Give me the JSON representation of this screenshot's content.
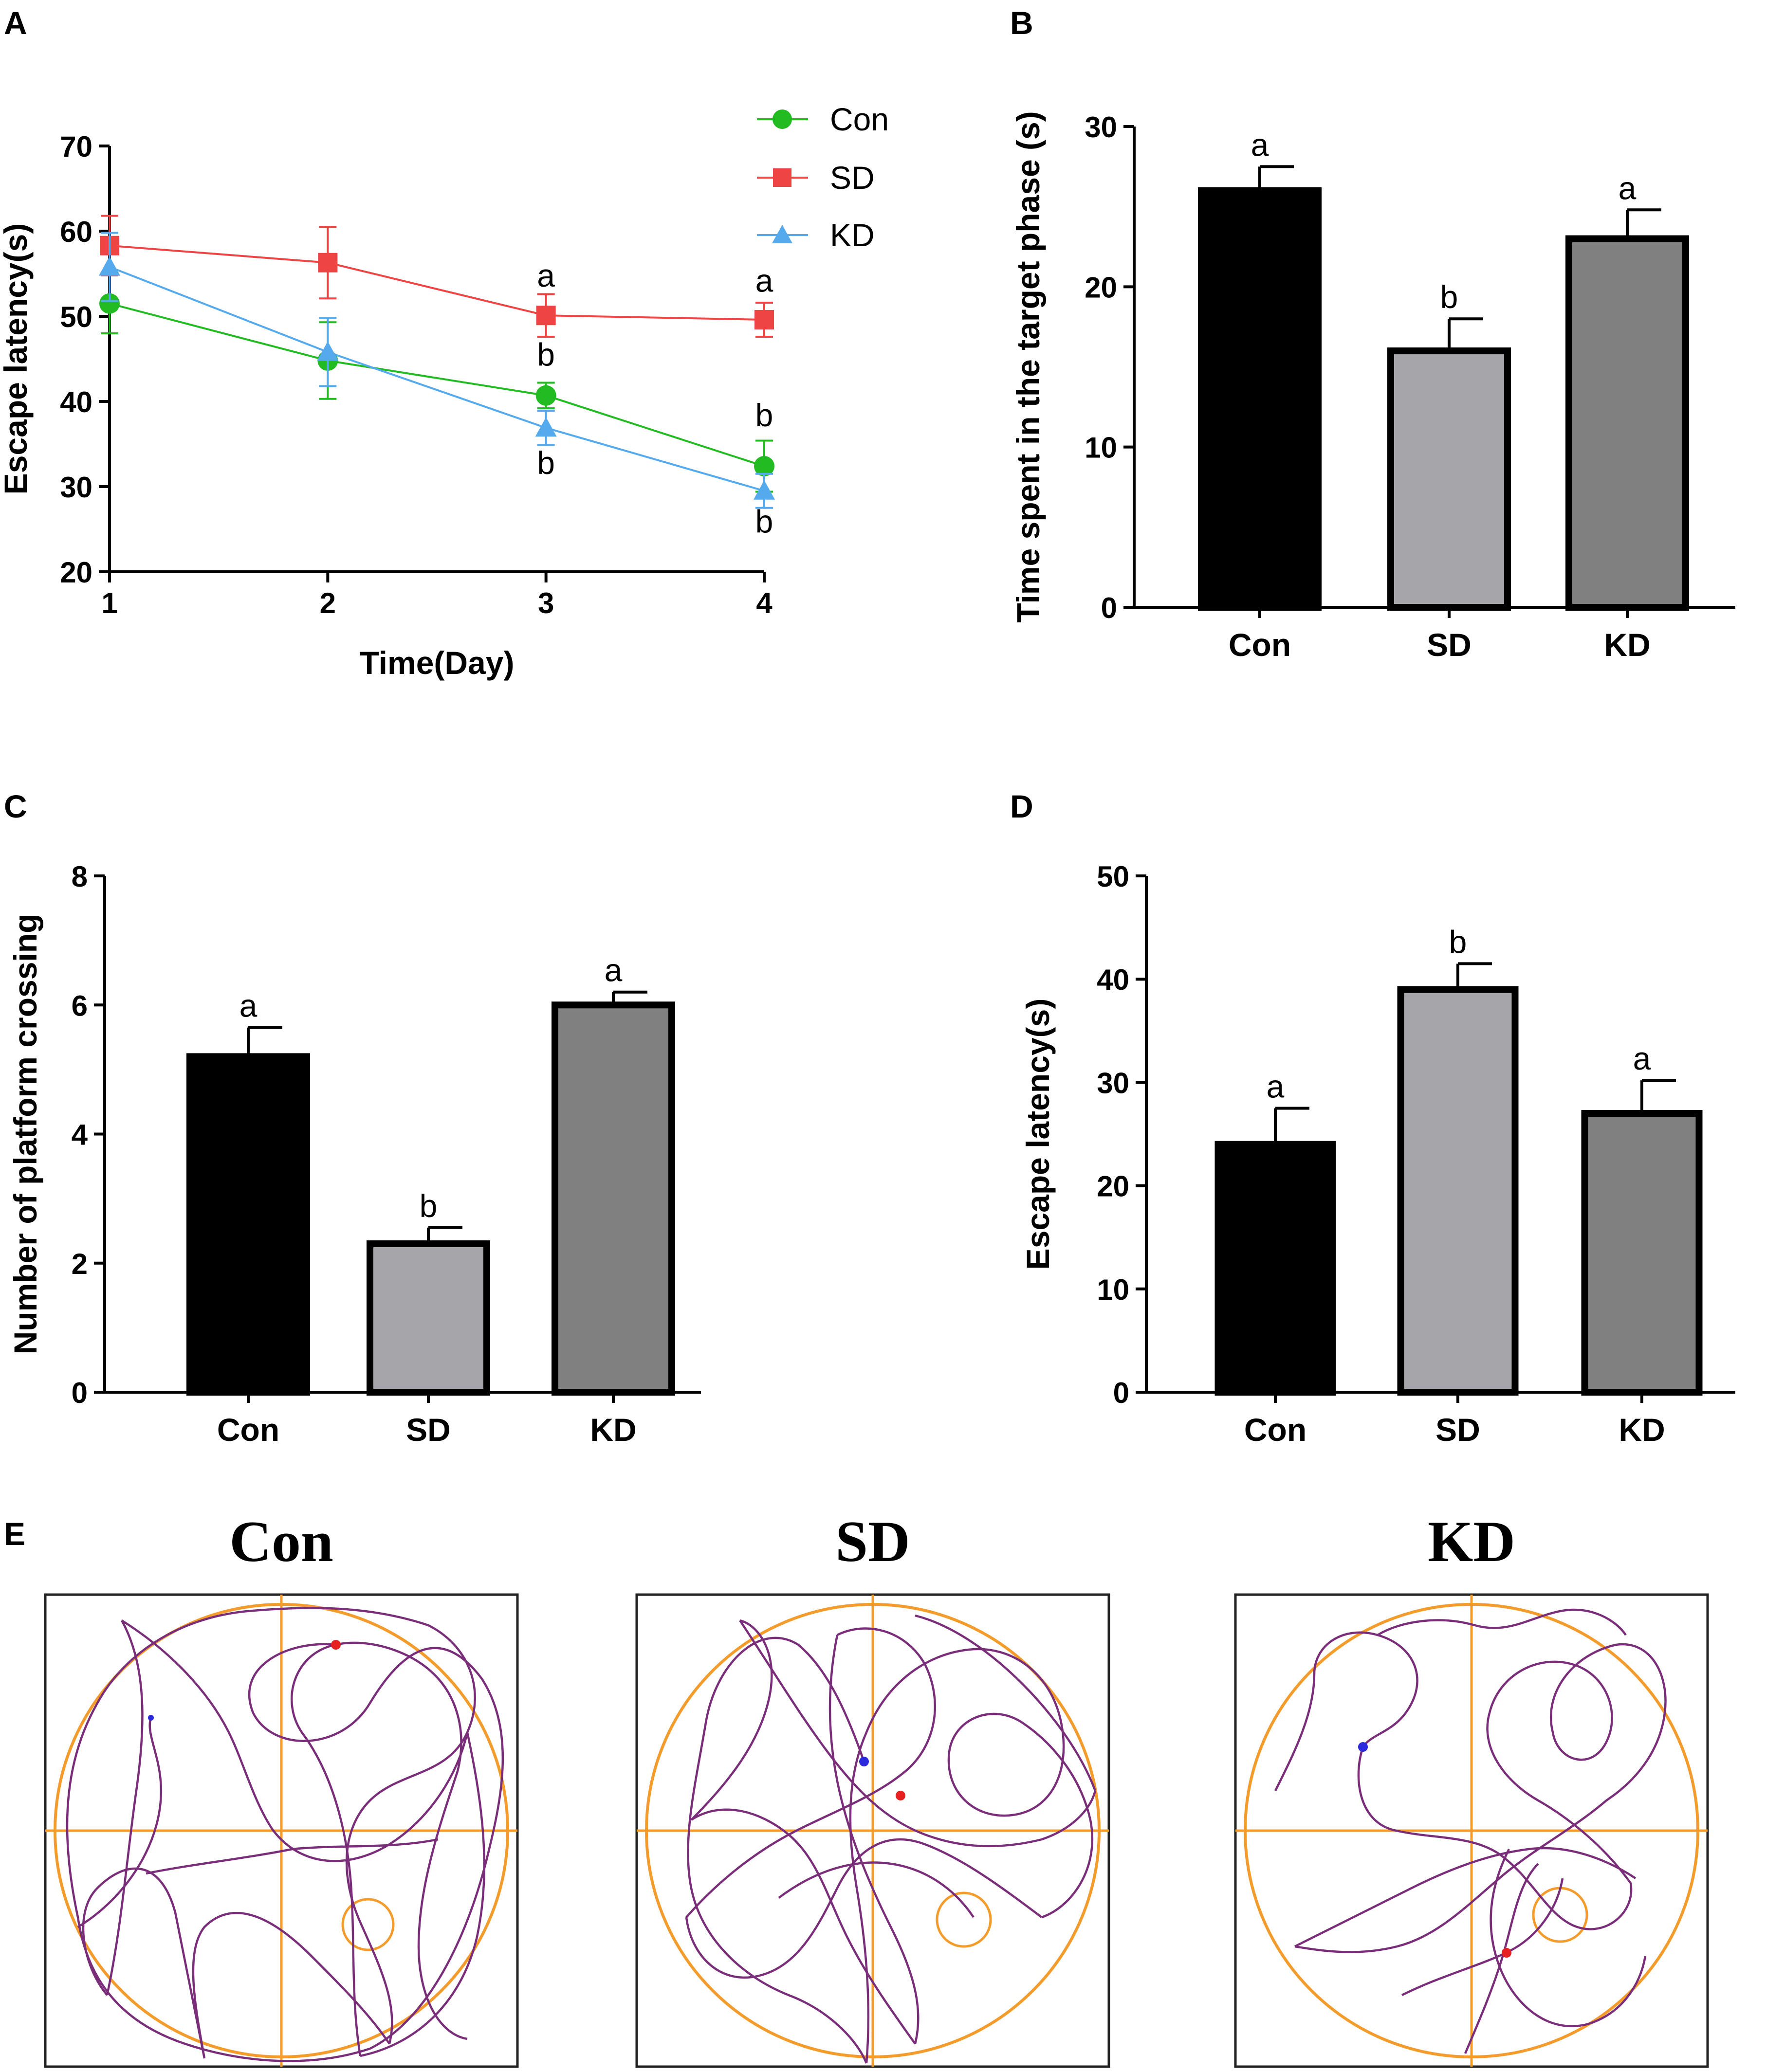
{
  "panel_letters": [
    "A",
    "B",
    "C",
    "D",
    "E"
  ],
  "colors": {
    "con": "#22bb22",
    "sd": "#ee4444",
    "kd": "#55aaee",
    "bar_con": "#000000",
    "bar_sd": "#a6a6aa",
    "bar_kd": "#808080",
    "maze": "#f39c2c",
    "path": "#7a2e7a",
    "start": "#2b2bdd",
    "end": "#e62020"
  },
  "chart_data": [
    {
      "id": "A",
      "type": "line",
      "x": [
        1,
        2,
        3,
        4
      ],
      "xlabel": "Time(Day)",
      "ylabel": "Escape latency(s)",
      "ylim": [
        20,
        70
      ],
      "yticks": [
        20,
        30,
        40,
        50,
        60,
        70
      ],
      "xticks": [
        "1",
        "2",
        "3",
        "4"
      ],
      "legend": [
        "Con",
        "SD",
        "KD"
      ],
      "series": [
        {
          "name": "Con",
          "marker": "circle",
          "values": [
            51.5,
            44.8,
            40.7,
            32.4
          ],
          "errors": [
            3.5,
            4.5,
            1.5,
            3.0
          ]
        },
        {
          "name": "SD",
          "marker": "square",
          "values": [
            58.3,
            56.3,
            50.1,
            49.6
          ],
          "errors": [
            3.5,
            4.2,
            2.5,
            2.0
          ]
        },
        {
          "name": "KD",
          "marker": "triangle",
          "values": [
            55.8,
            45.8,
            36.9,
            29.5
          ],
          "errors": [
            4.0,
            4.0,
            2.0,
            2.0
          ]
        }
      ],
      "annotations": [
        {
          "x": 3,
          "y": 53.5,
          "text": "a"
        },
        {
          "x": 3,
          "y": 44.2,
          "text": "b"
        },
        {
          "x": 3,
          "y": 31.5,
          "text": "b"
        },
        {
          "x": 4,
          "y": 52.9,
          "text": "a"
        },
        {
          "x": 4,
          "y": 37.1,
          "text": "b"
        },
        {
          "x": 4,
          "y": 24.6,
          "text": "b"
        }
      ]
    },
    {
      "id": "B",
      "type": "bar",
      "categories": [
        "Con",
        "SD",
        "KD"
      ],
      "values": [
        26,
        16,
        23
      ],
      "errors": [
        1.5,
        2.0,
        1.8
      ],
      "labels": [
        "a",
        "b",
        "a"
      ],
      "ylabel": "Time spent in the target phase (s)",
      "ylim": [
        0,
        30
      ],
      "yticks": [
        0,
        10,
        20,
        30
      ]
    },
    {
      "id": "C",
      "type": "bar",
      "categories": [
        "Con",
        "SD",
        "KD"
      ],
      "values": [
        5.2,
        2.3,
        6.0
      ],
      "errors": [
        0.45,
        0.25,
        0.2
      ],
      "labels": [
        "a",
        "b",
        "a"
      ],
      "ylabel": "Number of platform crossing",
      "ylim": [
        0,
        8
      ],
      "yticks": [
        0,
        2,
        4,
        6,
        8
      ]
    },
    {
      "id": "D",
      "type": "bar",
      "categories": [
        "Con",
        "SD",
        "KD"
      ],
      "values": [
        24,
        39,
        27
      ],
      "errors": [
        3.5,
        2.5,
        3.2
      ],
      "labels": [
        "a",
        "b",
        "a"
      ],
      "ylabel": "Escape latency(s)",
      "ylim": [
        0,
        50
      ],
      "yticks": [
        0,
        10,
        20,
        30,
        40,
        50
      ]
    }
  ],
  "track_titles": [
    "Con",
    "SD",
    "KD"
  ]
}
